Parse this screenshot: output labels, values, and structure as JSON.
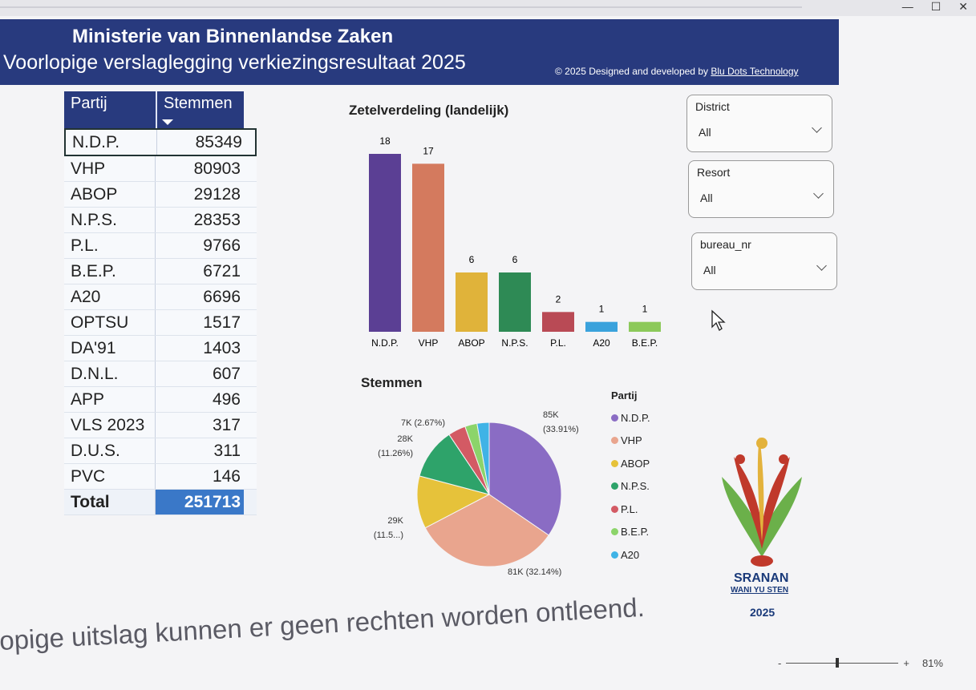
{
  "header": {
    "title": "Ministerie van Binnenlandse Zaken",
    "subtitle": "Voorlopige verslaglegging verkiezingsresultaat 2025",
    "credit_prefix": "© 2025 Designed and developed by ",
    "credit_link": "Blu Dots Technology"
  },
  "table": {
    "col_party": "Partij",
    "col_votes": "Stemmen",
    "rows": [
      {
        "party": "N.D.P.",
        "votes": "85349"
      },
      {
        "party": "VHP",
        "votes": "80903"
      },
      {
        "party": "ABOP",
        "votes": "29128"
      },
      {
        "party": "N.P.S.",
        "votes": "28353"
      },
      {
        "party": "P.L.",
        "votes": "9766"
      },
      {
        "party": "B.E.P.",
        "votes": "6721"
      },
      {
        "party": "A20",
        "votes": "6696"
      },
      {
        "party": "OPTSU",
        "votes": "1517"
      },
      {
        "party": "DA'91",
        "votes": "1403"
      },
      {
        "party": "D.N.L.",
        "votes": "607"
      },
      {
        "party": "APP",
        "votes": "496"
      },
      {
        "party": "VLS 2023",
        "votes": "317"
      },
      {
        "party": "D.U.S.",
        "votes": "311"
      },
      {
        "party": "PVC",
        "votes": "146"
      }
    ],
    "total_label": "Total",
    "total_value": "251713"
  },
  "bar_chart": {
    "title": "Zetelverdeling (landelijk)"
  },
  "pie_chart": {
    "title": "Stemmen",
    "legend_title": "Partij"
  },
  "slicers": [
    {
      "label": "District",
      "value": "All"
    },
    {
      "label": "Resort",
      "value": "All"
    },
    {
      "label": "bureau_nr",
      "value": "All"
    }
  ],
  "logo": {
    "line1": "SRANAN",
    "line2": "WANI YU STEN",
    "line3": "2025"
  },
  "footer": {
    "text": "rlopige uitslag kunnen er geen rechten worden ontleend."
  },
  "zoom": {
    "minus": "-",
    "plus": "+",
    "level": "81%"
  },
  "chart_data": [
    {
      "type": "bar",
      "title": "Zetelverdeling (landelijk)",
      "categories": [
        "N.D.P.",
        "VHP",
        "ABOP",
        "N.P.S.",
        "P.L.",
        "A20",
        "B.E.P."
      ],
      "values": [
        18,
        17,
        6,
        6,
        2,
        1,
        1
      ],
      "colors": [
        "#5b3f94",
        "#d47a5e",
        "#e0b33a",
        "#2e8a55",
        "#b94a55",
        "#3aa2dc",
        "#8cc95a"
      ],
      "ylim": [
        0,
        18
      ]
    },
    {
      "type": "pie",
      "title": "Stemmen",
      "legend_title": "Partij",
      "categories": [
        "N.D.P.",
        "VHP",
        "ABOP",
        "N.P.S.",
        "P.L.",
        "B.E.P.",
        "A20"
      ],
      "values": [
        85349,
        80903,
        29128,
        28353,
        9766,
        6721,
        6696
      ],
      "colors": [
        "#8a6cc4",
        "#e9a58e",
        "#e6c23a",
        "#2ea36a",
        "#d35a64",
        "#8cd46a",
        "#3fb3e6"
      ],
      "labels": [
        {
          "line1": "85K",
          "line2": "(33.91%)"
        },
        {
          "line1": "81K (32.14%)",
          "line2": ""
        },
        {
          "line1": "29K",
          "line2": "(11.5...)"
        },
        {
          "line1": "28K",
          "line2": "(11.26%)"
        },
        {
          "line1": "7K (2.67%)",
          "line2": ""
        }
      ]
    }
  ]
}
